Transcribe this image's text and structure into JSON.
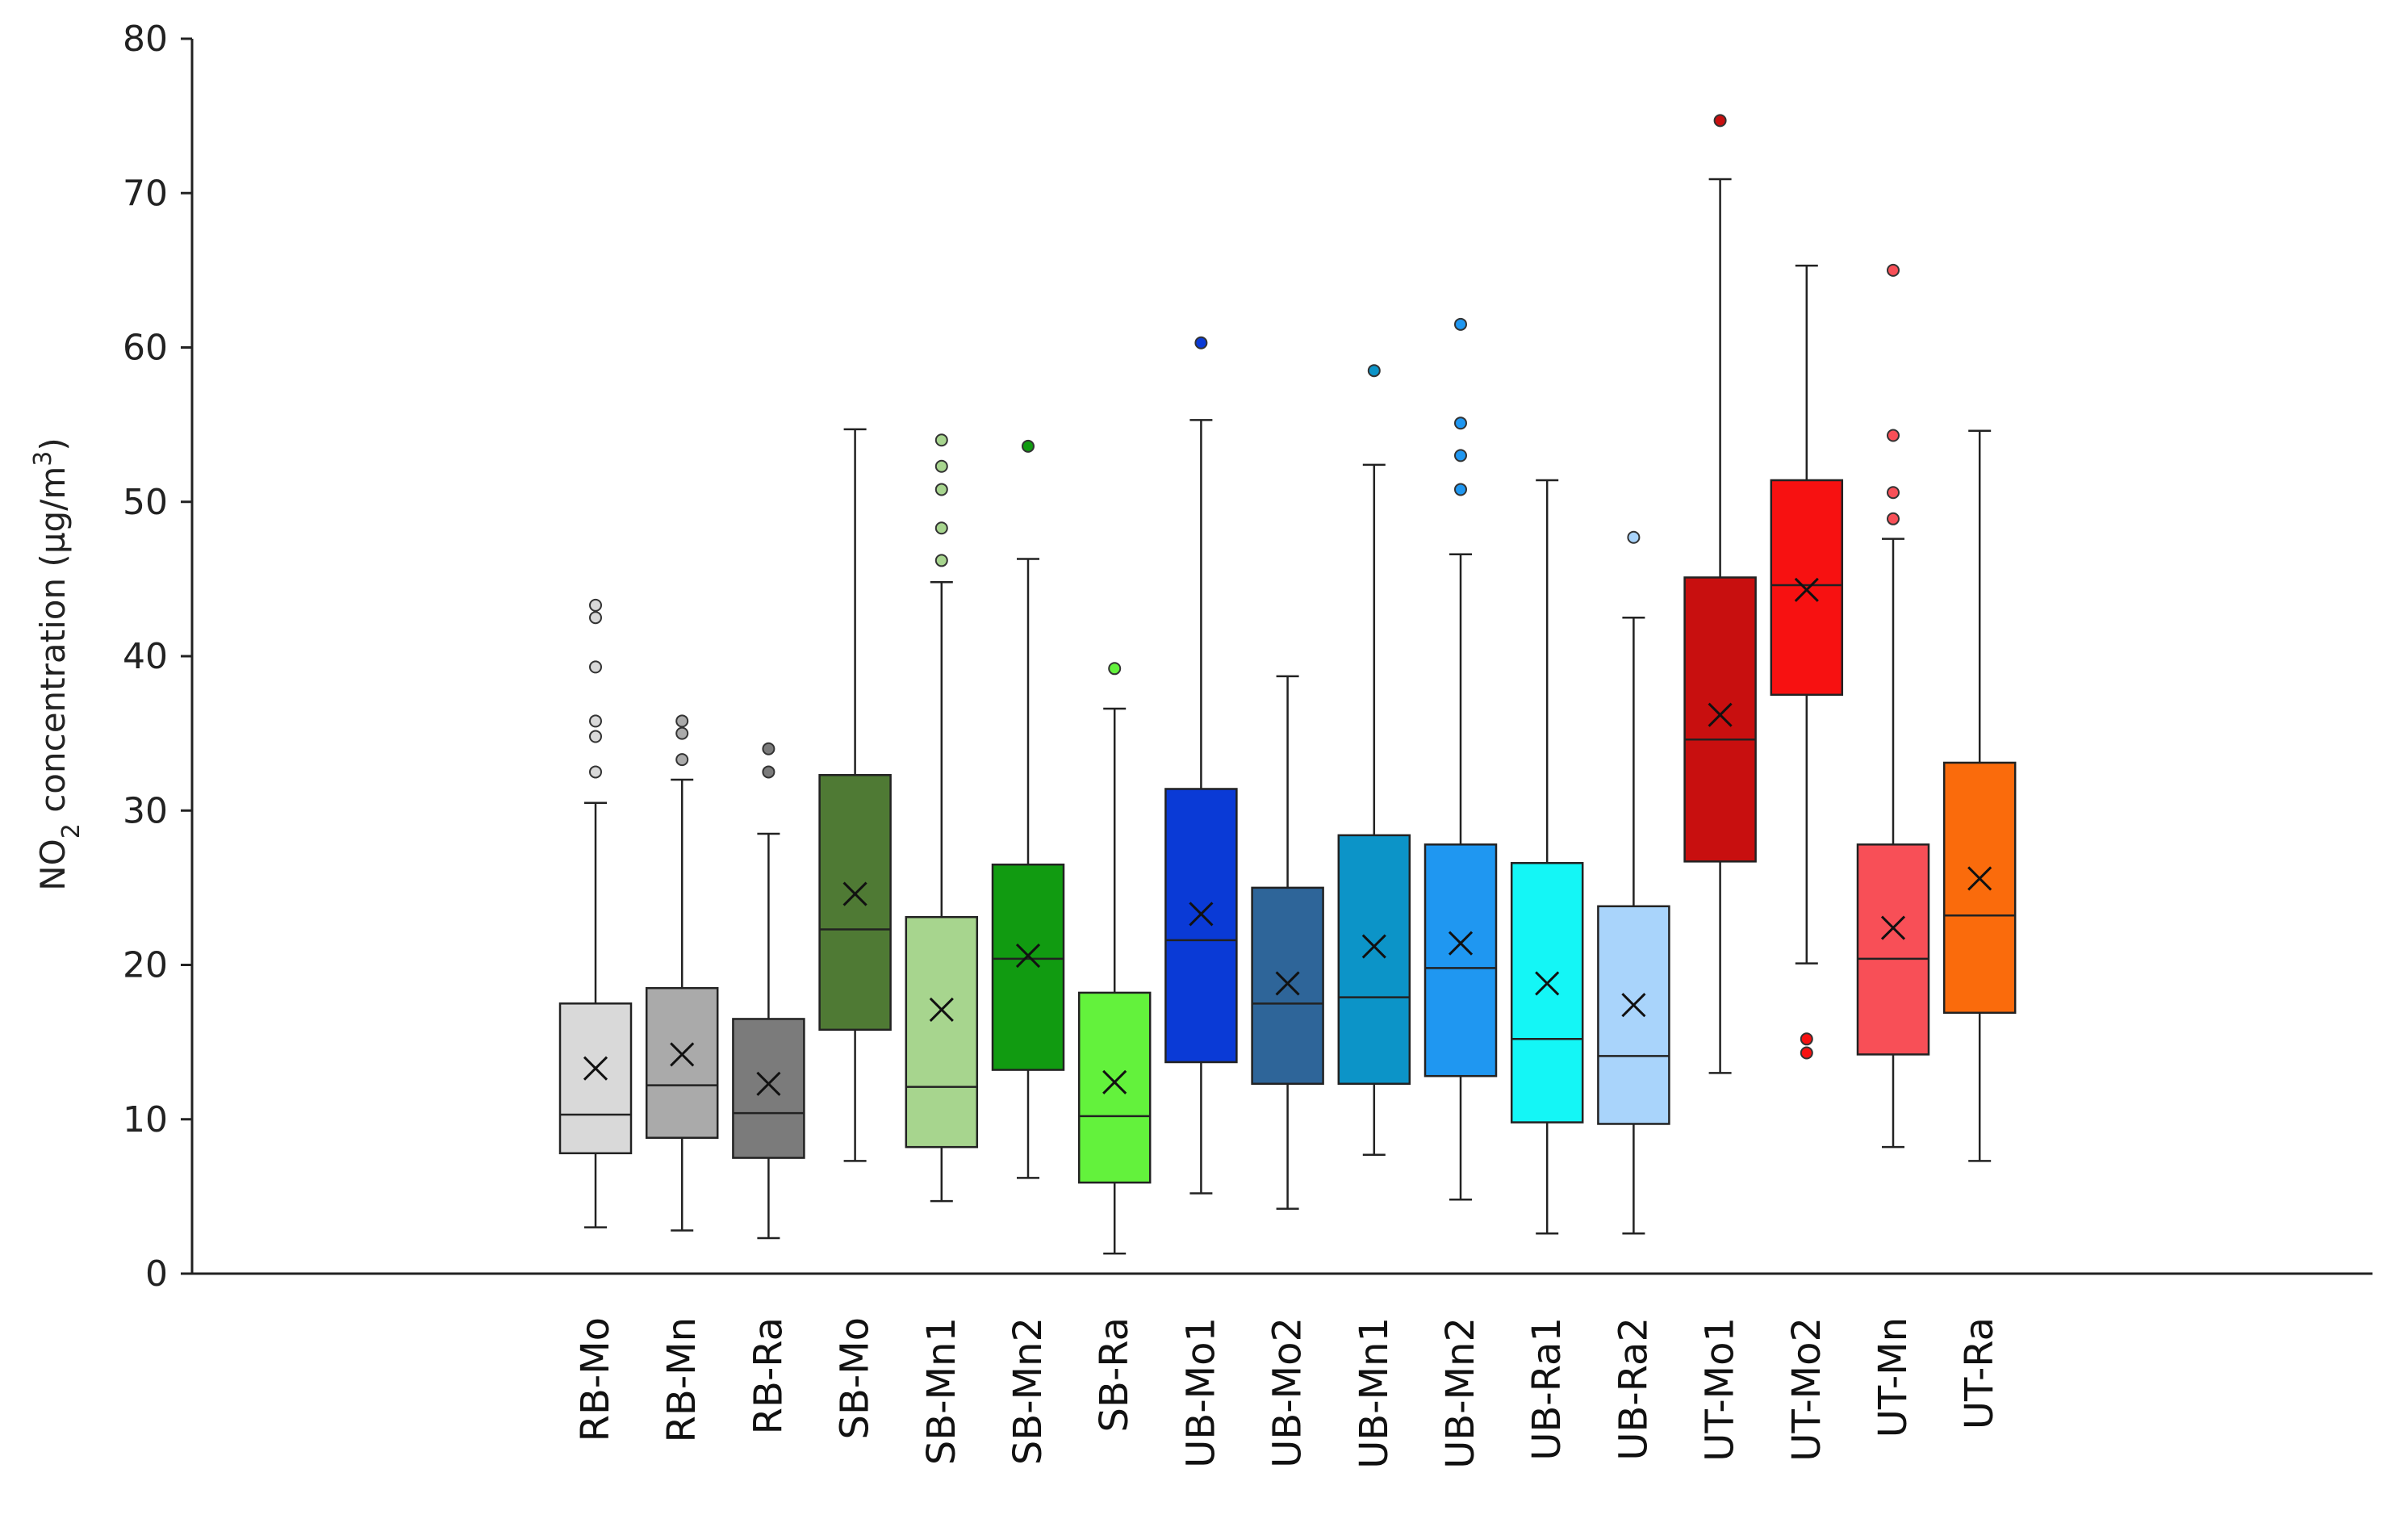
{
  "chart_data": {
    "type": "box",
    "title": "",
    "xlabel": "",
    "ylabel": {
      "prefix": "NO",
      "subscript": "2",
      "middle": " concentration (µg/m",
      "superscript": "3",
      "suffix": ")"
    },
    "ylim": [
      0,
      80
    ],
    "yticks": [
      "0",
      "10",
      "20",
      "30",
      "40",
      "50",
      "60",
      "70",
      "80"
    ],
    "grid": false,
    "categories": [
      "RB-Mo",
      "RB-Mn",
      "RB-Ra",
      "SB-Mo",
      "SB-Mn1",
      "SB-Mn2",
      "SB-Ra",
      "UB-Mo1",
      "UB-Mo2",
      "UB-Mn1",
      "UB-Mn2",
      "UB-Ra1",
      "UB-Ra2",
      "UT-Mo1",
      "UT-Mo2",
      "UT-Mn",
      "UT-Ra"
    ],
    "boxes": [
      {
        "category": "RB-Mo",
        "color": "#d9d9d9",
        "whisker_low": 3.0,
        "q1": 7.8,
        "median": 10.3,
        "q3": 17.5,
        "whisker_high": 30.5,
        "mean": 13.3,
        "outliers": [
          32.5,
          34.8,
          35.8,
          39.3,
          42.5,
          43.3
        ]
      },
      {
        "category": "RB-Mn",
        "color": "#aaaaaa",
        "whisker_low": 2.8,
        "q1": 8.8,
        "median": 12.2,
        "q3": 18.5,
        "whisker_high": 32.0,
        "mean": 14.2,
        "outliers": [
          33.3,
          35.0,
          35.8
        ]
      },
      {
        "category": "RB-Ra",
        "color": "#7b7b7b",
        "whisker_low": 2.3,
        "q1": 7.5,
        "median": 10.4,
        "q3": 16.5,
        "whisker_high": 28.5,
        "mean": 12.3,
        "outliers": [
          32.5,
          34.0
        ]
      },
      {
        "category": "SB-Mo",
        "color": "#4f7a34",
        "whisker_low": 7.3,
        "q1": 15.8,
        "median": 22.3,
        "q3": 32.3,
        "whisker_high": 54.7,
        "mean": 24.6,
        "outliers": []
      },
      {
        "category": "SB-Mn1",
        "color": "#a7d58e",
        "whisker_low": 4.7,
        "q1": 8.2,
        "median": 12.1,
        "q3": 23.1,
        "whisker_high": 44.8,
        "mean": 17.1,
        "outliers": [
          46.2,
          48.3,
          50.8,
          52.3,
          54.0
        ]
      },
      {
        "category": "SB-Mn2",
        "color": "#119b11",
        "whisker_low": 6.2,
        "q1": 13.2,
        "median": 20.4,
        "q3": 26.5,
        "whisker_high": 46.3,
        "mean": 20.6,
        "outliers": [
          53.6
        ]
      },
      {
        "category": "SB-Ra",
        "color": "#63f23c",
        "whisker_low": 1.3,
        "q1": 5.9,
        "median": 10.2,
        "q3": 18.2,
        "whisker_high": 36.6,
        "mean": 12.4,
        "outliers": [
          39.2
        ]
      },
      {
        "category": "UB-Mo1",
        "color": "#0a3ad6",
        "whisker_low": 5.2,
        "q1": 13.7,
        "median": 21.6,
        "q3": 31.4,
        "whisker_high": 55.3,
        "mean": 23.3,
        "outliers": [
          60.3
        ]
      },
      {
        "category": "UB-Mo2",
        "color": "#2e6599",
        "whisker_low": 4.2,
        "q1": 12.3,
        "median": 17.5,
        "q3": 25.0,
        "whisker_high": 38.7,
        "mean": 18.8,
        "outliers": []
      },
      {
        "category": "UB-Mn1",
        "color": "#0c94c8",
        "whisker_low": 7.7,
        "q1": 12.3,
        "median": 17.9,
        "q3": 28.4,
        "whisker_high": 52.4,
        "mean": 21.2,
        "outliers": [
          58.5
        ]
      },
      {
        "category": "UB-Mn2",
        "color": "#1f97f1",
        "whisker_low": 4.8,
        "q1": 12.8,
        "median": 19.8,
        "q3": 27.8,
        "whisker_high": 46.6,
        "mean": 21.4,
        "outliers": [
          50.8,
          53.0,
          55.1,
          61.5
        ]
      },
      {
        "category": "UB-Ra1",
        "color": "#14f6f6",
        "whisker_low": 2.6,
        "q1": 9.8,
        "median": 15.2,
        "q3": 26.6,
        "whisker_high": 51.4,
        "mean": 18.8,
        "outliers": []
      },
      {
        "category": "UB-Ra2",
        "color": "#a9d4fb",
        "whisker_low": 2.6,
        "q1": 9.7,
        "median": 14.1,
        "q3": 23.8,
        "whisker_high": 42.5,
        "mean": 17.4,
        "outliers": [
          47.7
        ]
      },
      {
        "category": "UT-Mo1",
        "color": "#c80f0f",
        "whisker_low": 13.0,
        "q1": 26.7,
        "median": 34.6,
        "q3": 45.1,
        "whisker_high": 70.9,
        "mean": 36.2,
        "outliers": [
          74.7
        ]
      },
      {
        "category": "UT-Mo2",
        "color": "#f71111",
        "whisker_low": 20.1,
        "q1": 37.5,
        "median": 44.6,
        "q3": 51.4,
        "whisker_high": 65.3,
        "mean": 44.3,
        "outliers": [
          14.3,
          15.2
        ]
      },
      {
        "category": "UT-Mn",
        "color": "#f84f57",
        "whisker_low": 8.2,
        "q1": 14.2,
        "median": 20.4,
        "q3": 27.8,
        "whisker_high": 47.6,
        "mean": 22.4,
        "outliers": [
          48.9,
          50.6,
          54.3,
          65.0
        ]
      },
      {
        "category": "UT-Ra",
        "color": "#fa6b0c",
        "whisker_low": 7.3,
        "q1": 16.9,
        "median": 23.2,
        "q3": 33.1,
        "whisker_high": 54.6,
        "mean": 25.6,
        "outliers": []
      }
    ]
  }
}
